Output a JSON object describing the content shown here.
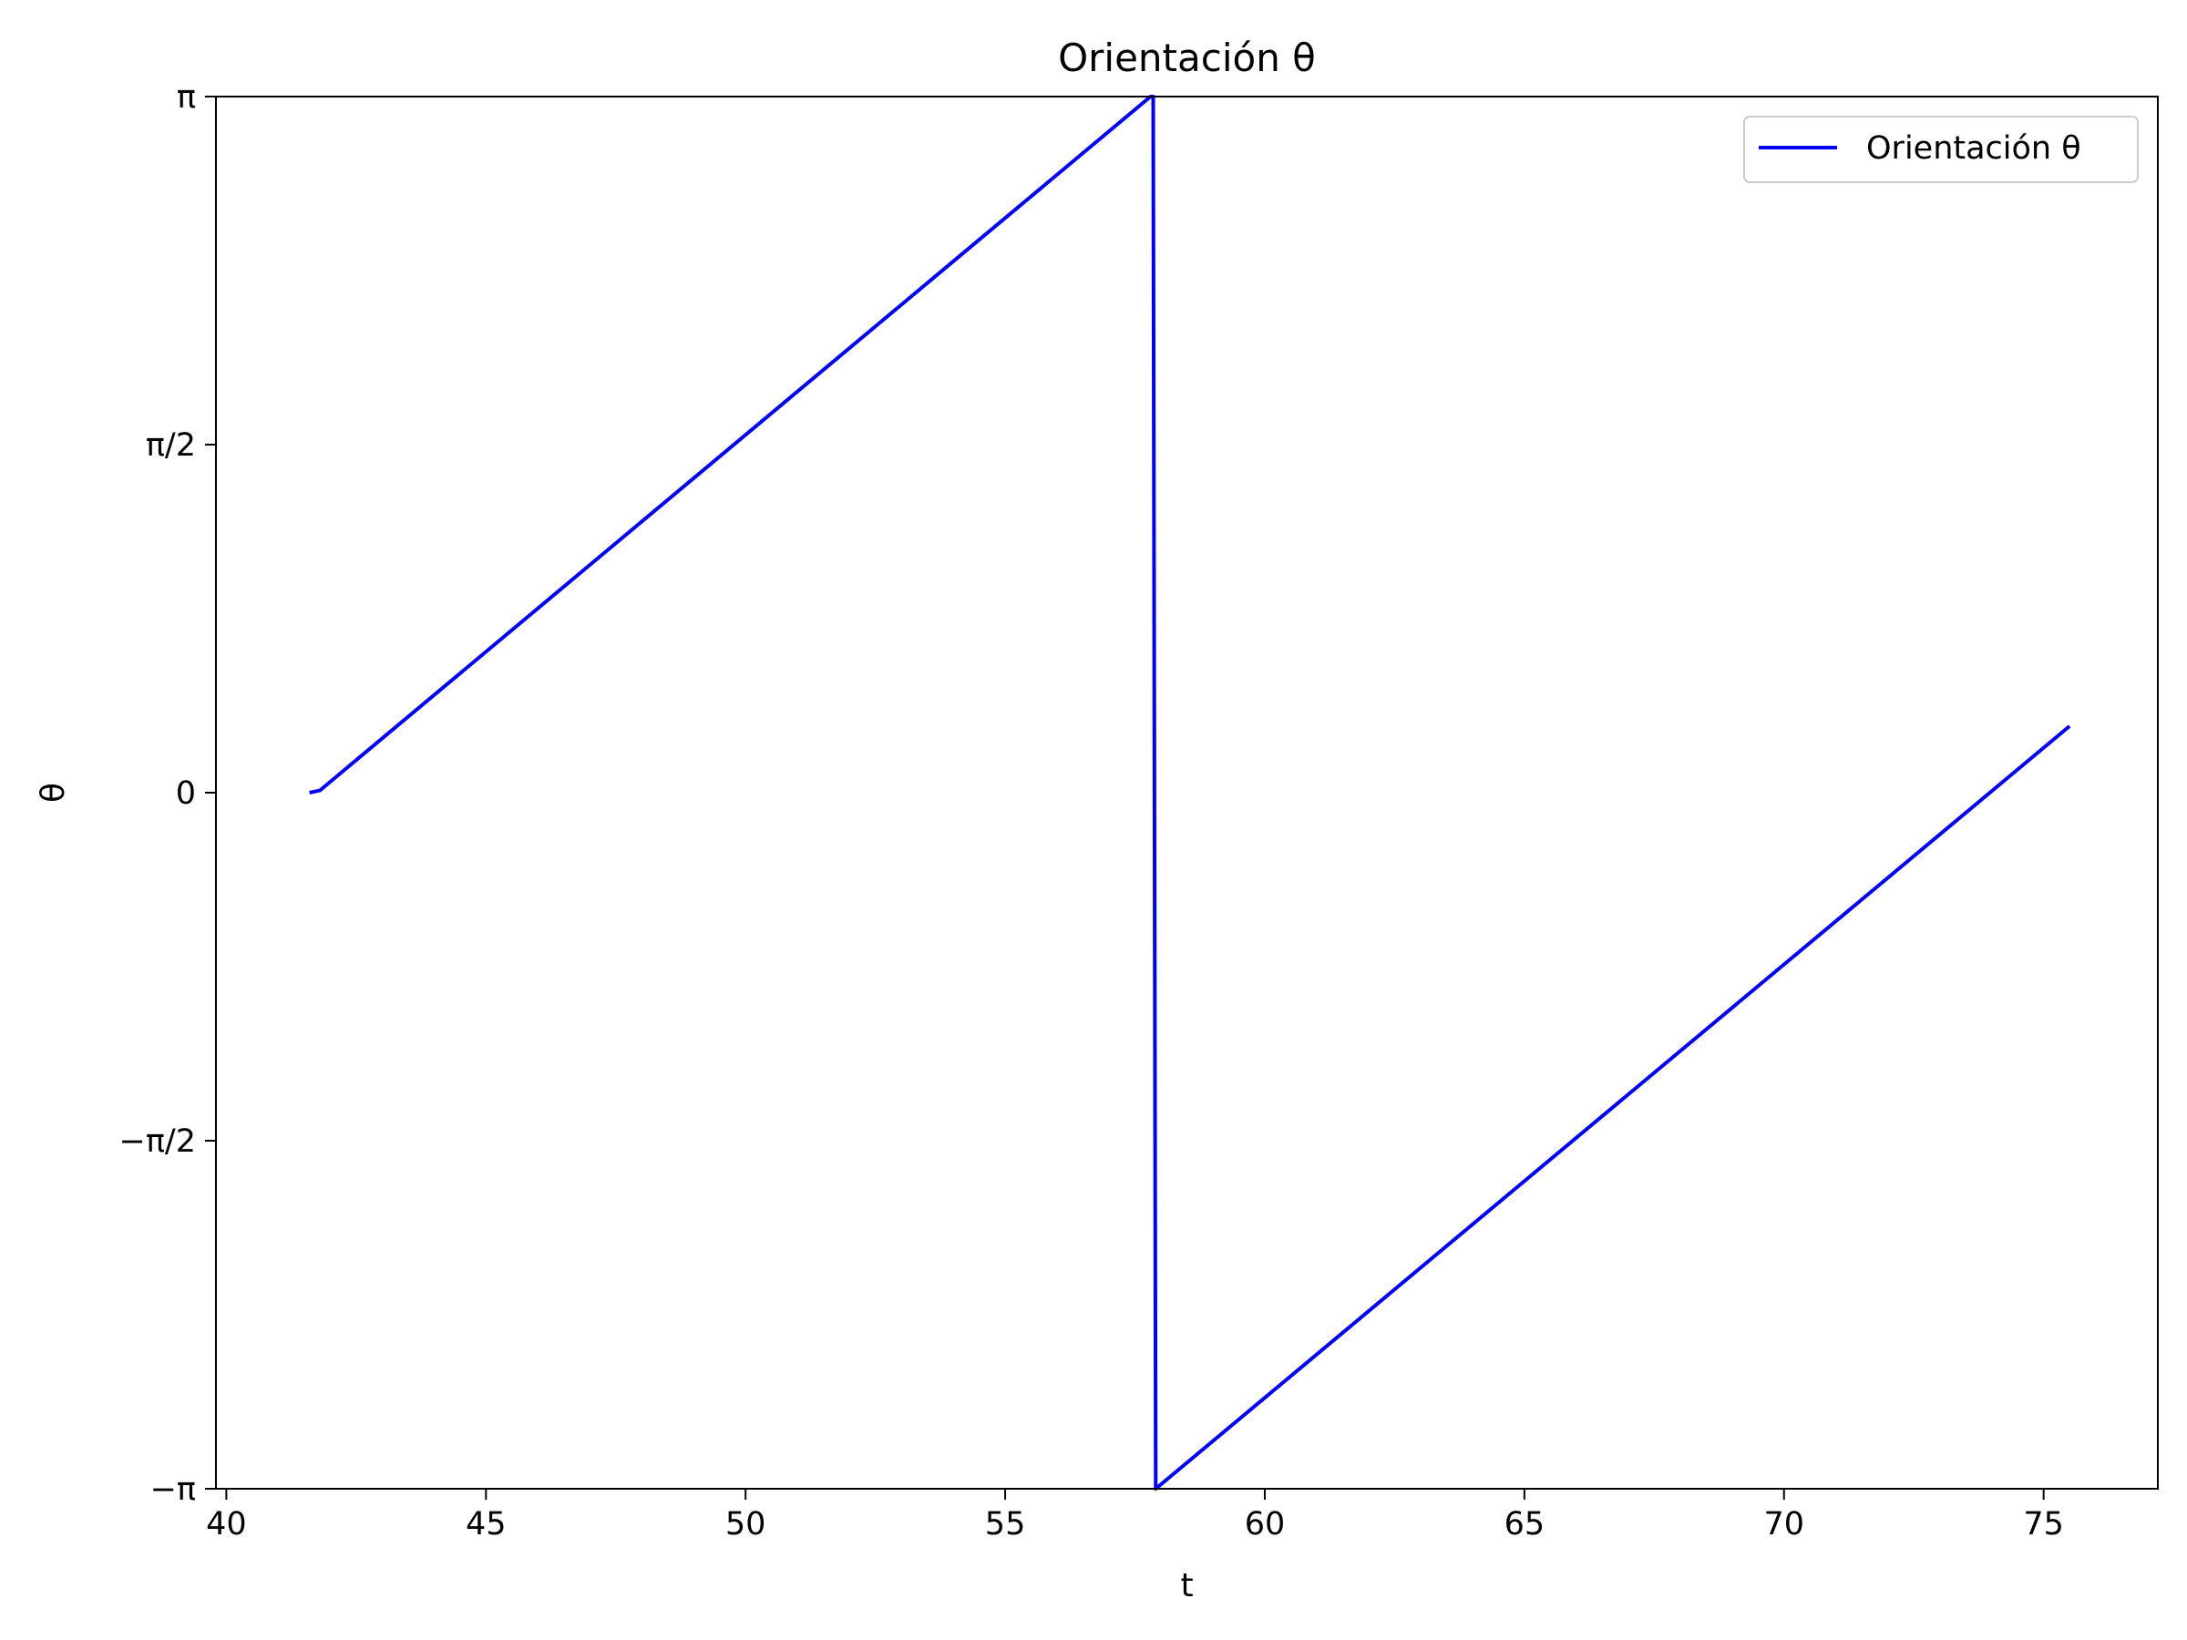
{
  "chart_data": {
    "type": "line",
    "title": "Orientación θ",
    "xlabel": "t",
    "ylabel": "θ",
    "xlim": [
      39.8,
      77.2
    ],
    "ylim": [
      -3.14159265,
      3.14159265
    ],
    "x_ticks": [
      40,
      45,
      50,
      55,
      60,
      65,
      70,
      75
    ],
    "x_tick_labels": [
      "40",
      "45",
      "50",
      "55",
      "60",
      "65",
      "70",
      "75"
    ],
    "y_ticks": [
      -3.14159265,
      -1.57079633,
      0,
      1.57079633,
      3.14159265
    ],
    "y_tick_labels": [
      "−π",
      "−π/2",
      "0",
      "π/2",
      "π"
    ],
    "grid": false,
    "legend_position": "top-right",
    "series": [
      {
        "name": "Orientación θ",
        "color": "#0000ff",
        "x": [
          41.6,
          41.8,
          57.8,
          57.85,
          57.9,
          75.5
        ],
        "y": [
          0.0,
          0.01,
          3.1416,
          3.1416,
          -3.1416,
          0.3
        ]
      }
    ]
  }
}
